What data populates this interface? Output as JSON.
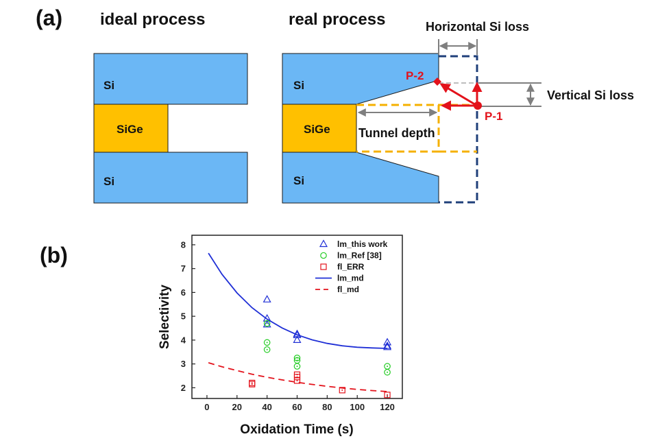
{
  "panel_a": {
    "label": "(a)",
    "ideal": {
      "title": "ideal process",
      "layers": {
        "top": "Si",
        "middle": "SiGe",
        "bottom": "Si"
      }
    },
    "real": {
      "title": "real process",
      "layers": {
        "top": "Si",
        "middle": "SiGe",
        "bottom": "Si"
      }
    },
    "annotations": {
      "horizontal_loss": "Horizontal Si loss",
      "vertical_loss": "Vertical Si loss",
      "tunnel_depth": "Tunnel depth",
      "p1": "P-1",
      "p2": "P-2"
    },
    "colors": {
      "si": "#6bb7f5",
      "sige": "#ffc000",
      "edge": "#1a1a1a",
      "blue_dash": "#1f3f7a",
      "orange_dash": "#f5b000",
      "red": "#e3121b",
      "gray": "#7f7f7f"
    }
  },
  "panel_b": {
    "label": "(b)"
  },
  "chart_data": {
    "type": "scatter",
    "xlabel": "Oxidation Time (s)",
    "ylabel": "Selectivity",
    "xlim": [
      -10,
      130
    ],
    "ylim": [
      1.55,
      8.4
    ],
    "xticks": [
      0,
      20,
      40,
      60,
      80,
      100,
      120
    ],
    "yticks": [
      2,
      3,
      4,
      5,
      6,
      7,
      8
    ],
    "series": [
      {
        "name": "lm_this work",
        "marker": "triangle",
        "color": "#1f2fd6",
        "points": [
          [
            40,
            5.7
          ],
          [
            40,
            4.9
          ],
          [
            40,
            4.65
          ],
          [
            60,
            4.25
          ],
          [
            60,
            4.2
          ],
          [
            60,
            4.0
          ],
          [
            120,
            3.9
          ],
          [
            120,
            3.75
          ],
          [
            120,
            3.7
          ]
        ]
      },
      {
        "name": "lm_Ref [38]",
        "marker": "circle",
        "color": "#22cc22",
        "points": [
          [
            40,
            4.7
          ],
          [
            40,
            3.9
          ],
          [
            40,
            3.6
          ],
          [
            60,
            3.25
          ],
          [
            60,
            3.15
          ],
          [
            60,
            2.9
          ],
          [
            120,
            2.9
          ],
          [
            120,
            2.65
          ]
        ]
      },
      {
        "name": "fl_ERR",
        "marker": "square",
        "color": "#e3121b",
        "points": [
          [
            30,
            2.2
          ],
          [
            30,
            2.15
          ],
          [
            60,
            2.55
          ],
          [
            60,
            2.45
          ],
          [
            60,
            2.3
          ],
          [
            90,
            1.9
          ],
          [
            120,
            1.7
          ]
        ]
      },
      {
        "name": "lm_md",
        "line": "solid",
        "color": "#1f2fd6",
        "x": [
          1,
          10,
          20,
          30,
          40,
          50,
          60,
          70,
          80,
          90,
          100,
          110,
          120
        ],
        "y": [
          7.65,
          6.76,
          5.98,
          5.36,
          4.88,
          4.51,
          4.22,
          4.01,
          3.86,
          3.76,
          3.7,
          3.67,
          3.65
        ]
      },
      {
        "name": "fl_md",
        "line": "dashed",
        "color": "#e3121b",
        "x": [
          1,
          10,
          20,
          30,
          40,
          50,
          60,
          70,
          80,
          90,
          100,
          110,
          120
        ],
        "y": [
          3.05,
          2.88,
          2.72,
          2.57,
          2.44,
          2.33,
          2.23,
          2.14,
          2.06,
          1.99,
          1.93,
          1.88,
          1.84
        ]
      }
    ]
  }
}
